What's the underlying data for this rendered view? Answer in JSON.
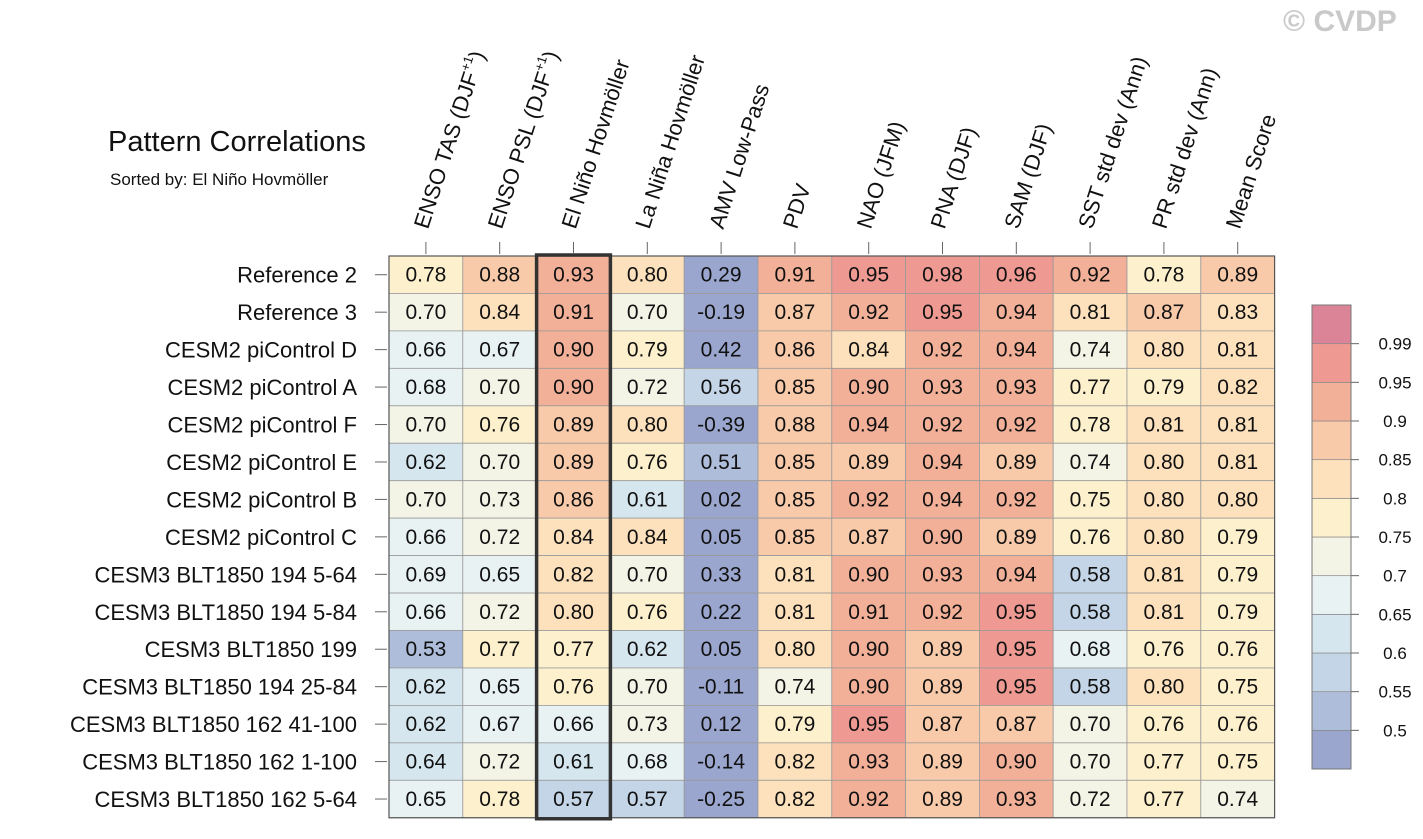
{
  "title": "Pattern Correlations",
  "subtitle": "Sorted by: El Niño Hovmöller",
  "watermark": "© CVDP",
  "chart_data": {
    "type": "heatmap",
    "columns": [
      {
        "label": "ENSO TAS (DJF",
        "sup": "+1",
        "tail": ")"
      },
      {
        "label": "ENSO PSL (DJF",
        "sup": "+1",
        "tail": ")"
      },
      {
        "label": "El Niño Hovmöller"
      },
      {
        "label": "La Niña Hovmöller"
      },
      {
        "label": "AMV Low-Pass"
      },
      {
        "label": "PDV"
      },
      {
        "label": "NAO (JFM)"
      },
      {
        "label": "PNA (DJF)"
      },
      {
        "label": "SAM (DJF)"
      },
      {
        "label": "SST std dev (Ann)"
      },
      {
        "label": "PR std dev (Ann)"
      },
      {
        "label": "Mean Score"
      }
    ],
    "rows": [
      "Reference 2",
      "Reference 3",
      "CESM2 piControl D",
      "CESM2 piControl A",
      "CESM2 piControl F",
      "CESM2 piControl E",
      "CESM2 piControl B",
      "CESM2 piControl C",
      "CESM3 BLT1850 194 5-64",
      "CESM3 BLT1850 194 5-84",
      "CESM3 BLT1850 199",
      "CESM3 BLT1850 194 25-84",
      "CESM3 BLT1850 162 41-100",
      "CESM3 BLT1850 162 1-100",
      "CESM3 BLT1850 162 5-64"
    ],
    "values": [
      [
        0.78,
        0.88,
        0.93,
        0.8,
        0.29,
        0.91,
        0.95,
        0.98,
        0.96,
        0.92,
        0.78,
        0.89
      ],
      [
        0.7,
        0.84,
        0.91,
        0.7,
        -0.19,
        0.87,
        0.92,
        0.95,
        0.94,
        0.81,
        0.87,
        0.83
      ],
      [
        0.66,
        0.67,
        0.9,
        0.79,
        0.42,
        0.86,
        0.84,
        0.92,
        0.94,
        0.74,
        0.8,
        0.81
      ],
      [
        0.68,
        0.7,
        0.9,
        0.72,
        0.56,
        0.85,
        0.9,
        0.93,
        0.93,
        0.77,
        0.79,
        0.82
      ],
      [
        0.7,
        0.76,
        0.89,
        0.8,
        -0.39,
        0.88,
        0.94,
        0.92,
        0.92,
        0.78,
        0.81,
        0.81
      ],
      [
        0.62,
        0.7,
        0.89,
        0.76,
        0.51,
        0.85,
        0.89,
        0.94,
        0.89,
        0.74,
        0.8,
        0.81
      ],
      [
        0.7,
        0.73,
        0.86,
        0.61,
        0.02,
        0.85,
        0.92,
        0.94,
        0.92,
        0.75,
        0.8,
        0.8
      ],
      [
        0.66,
        0.72,
        0.84,
        0.84,
        0.05,
        0.85,
        0.87,
        0.9,
        0.89,
        0.76,
        0.8,
        0.79
      ],
      [
        0.69,
        0.65,
        0.82,
        0.7,
        0.33,
        0.81,
        0.9,
        0.93,
        0.94,
        0.58,
        0.81,
        0.79
      ],
      [
        0.66,
        0.72,
        0.8,
        0.76,
        0.22,
        0.81,
        0.91,
        0.92,
        0.95,
        0.58,
        0.81,
        0.79
      ],
      [
        0.53,
        0.77,
        0.77,
        0.62,
        0.05,
        0.8,
        0.9,
        0.89,
        0.95,
        0.68,
        0.76,
        0.76
      ],
      [
        0.62,
        0.65,
        0.76,
        0.7,
        -0.11,
        0.74,
        0.9,
        0.89,
        0.95,
        0.58,
        0.8,
        0.75
      ],
      [
        0.62,
        0.67,
        0.66,
        0.73,
        0.12,
        0.79,
        0.95,
        0.87,
        0.87,
        0.7,
        0.76,
        0.76
      ],
      [
        0.64,
        0.72,
        0.61,
        0.68,
        -0.14,
        0.82,
        0.93,
        0.89,
        0.9,
        0.7,
        0.77,
        0.75
      ],
      [
        0.65,
        0.78,
        0.57,
        0.57,
        -0.25,
        0.82,
        0.92,
        0.89,
        0.93,
        0.72,
        0.77,
        0.74
      ]
    ],
    "sorted_column": "El Niño Hovmöller",
    "colorbar": {
      "levels": [
        0.5,
        0.55,
        0.6,
        0.65,
        0.7,
        0.75,
        0.8,
        0.85,
        0.9,
        0.95,
        0.99
      ],
      "labels": [
        "0.5",
        "0.55",
        "0.6",
        "0.65",
        "0.7",
        "0.75",
        "0.8",
        "0.85",
        "0.9",
        "0.95",
        "0.99"
      ],
      "colors": [
        "#9aa6ce",
        "#aebdda",
        "#c3d5e6",
        "#d6e6ef",
        "#e8f2f3",
        "#f3f3e6",
        "#fdf0cd",
        "#fde1bc",
        "#f8caa9",
        "#f3b098",
        "#ee9a92",
        "#dc8497"
      ]
    }
  }
}
